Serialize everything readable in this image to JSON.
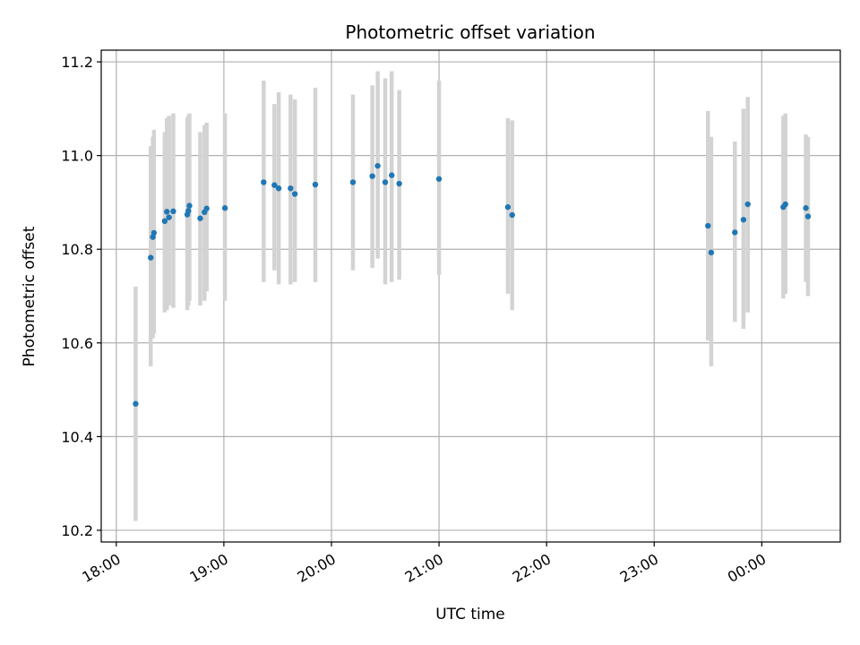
{
  "chart_data": {
    "type": "scatter",
    "title": "Photometric offset variation",
    "xlabel": "UTC time",
    "ylabel": "Photometric offset",
    "x_unit": "UTC hours (values past 24 are after midnight)",
    "xlim": [
      17.86,
      24.73
    ],
    "ylim": [
      10.175,
      11.225
    ],
    "x_ticks": [
      {
        "value": 18,
        "label": "18:00"
      },
      {
        "value": 19,
        "label": "19:00"
      },
      {
        "value": 20,
        "label": "20:00"
      },
      {
        "value": 21,
        "label": "21:00"
      },
      {
        "value": 22,
        "label": "22:00"
      },
      {
        "value": 23,
        "label": "23:00"
      },
      {
        "value": 24,
        "label": "00:00"
      }
    ],
    "y_ticks": [
      {
        "value": 10.2,
        "label": "10.2"
      },
      {
        "value": 10.4,
        "label": "10.4"
      },
      {
        "value": 10.6,
        "label": "10.6"
      },
      {
        "value": 10.8,
        "label": "10.8"
      },
      {
        "value": 11.0,
        "label": "11.0"
      },
      {
        "value": 11.2,
        "label": "11.2"
      }
    ],
    "grid": true,
    "colors": {
      "point": "#1f77b4",
      "errorbar": "#d3d3d3",
      "grid": "#b0b0b0"
    },
    "points": [
      {
        "x": 18.18,
        "y": 10.47,
        "lo": 10.22,
        "hi": 10.72
      },
      {
        "x": 18.32,
        "y": 10.782,
        "lo": 10.55,
        "hi": 11.02
      },
      {
        "x": 18.34,
        "y": 10.826,
        "lo": 10.61,
        "hi": 11.04
      },
      {
        "x": 18.35,
        "y": 10.835,
        "lo": 10.62,
        "hi": 11.055
      },
      {
        "x": 18.45,
        "y": 10.86,
        "lo": 10.665,
        "hi": 11.05
      },
      {
        "x": 18.47,
        "y": 10.88,
        "lo": 10.67,
        "hi": 11.08
      },
      {
        "x": 18.49,
        "y": 10.868,
        "lo": 10.68,
        "hi": 11.085
      },
      {
        "x": 18.53,
        "y": 10.881,
        "lo": 10.675,
        "hi": 11.09
      },
      {
        "x": 18.66,
        "y": 10.874,
        "lo": 10.67,
        "hi": 11.08
      },
      {
        "x": 18.67,
        "y": 10.882,
        "lo": 10.68,
        "hi": 11.085
      },
      {
        "x": 18.68,
        "y": 10.893,
        "lo": 10.69,
        "hi": 11.09
      },
      {
        "x": 18.78,
        "y": 10.866,
        "lo": 10.68,
        "hi": 11.05
      },
      {
        "x": 18.82,
        "y": 10.879,
        "lo": 10.69,
        "hi": 11.065
      },
      {
        "x": 18.84,
        "y": 10.887,
        "lo": 10.71,
        "hi": 11.07
      },
      {
        "x": 19.01,
        "y": 10.888,
        "lo": 10.69,
        "hi": 11.09
      },
      {
        "x": 19.37,
        "y": 10.943,
        "lo": 10.73,
        "hi": 11.16
      },
      {
        "x": 19.47,
        "y": 10.937,
        "lo": 10.755,
        "hi": 11.11
      },
      {
        "x": 19.51,
        "y": 10.93,
        "lo": 10.725,
        "hi": 11.135
      },
      {
        "x": 19.62,
        "y": 10.93,
        "lo": 10.725,
        "hi": 11.13
      },
      {
        "x": 19.66,
        "y": 10.918,
        "lo": 10.73,
        "hi": 11.12
      },
      {
        "x": 19.85,
        "y": 10.938,
        "lo": 10.73,
        "hi": 11.145
      },
      {
        "x": 20.2,
        "y": 10.943,
        "lo": 10.755,
        "hi": 11.13
      },
      {
        "x": 20.38,
        "y": 10.956,
        "lo": 10.76,
        "hi": 11.15
      },
      {
        "x": 20.43,
        "y": 10.978,
        "lo": 10.78,
        "hi": 11.18
      },
      {
        "x": 20.5,
        "y": 10.943,
        "lo": 10.725,
        "hi": 11.165
      },
      {
        "x": 20.56,
        "y": 10.958,
        "lo": 10.73,
        "hi": 11.18
      },
      {
        "x": 20.63,
        "y": 10.94,
        "lo": 10.735,
        "hi": 11.14
      },
      {
        "x": 21.0,
        "y": 10.95,
        "lo": 10.745,
        "hi": 11.16
      },
      {
        "x": 21.64,
        "y": 10.89,
        "lo": 10.705,
        "hi": 11.08
      },
      {
        "x": 21.68,
        "y": 10.873,
        "lo": 10.67,
        "hi": 11.075
      },
      {
        "x": 23.5,
        "y": 10.85,
        "lo": 10.605,
        "hi": 11.095
      },
      {
        "x": 23.53,
        "y": 10.793,
        "lo": 10.55,
        "hi": 11.04
      },
      {
        "x": 23.75,
        "y": 10.836,
        "lo": 10.645,
        "hi": 11.03
      },
      {
        "x": 23.83,
        "y": 10.863,
        "lo": 10.63,
        "hi": 11.1
      },
      {
        "x": 23.87,
        "y": 10.896,
        "lo": 10.665,
        "hi": 11.125
      },
      {
        "x": 24.2,
        "y": 10.89,
        "lo": 10.695,
        "hi": 11.085
      },
      {
        "x": 24.22,
        "y": 10.896,
        "lo": 10.705,
        "hi": 11.09
      },
      {
        "x": 24.41,
        "y": 10.888,
        "lo": 10.73,
        "hi": 11.045
      },
      {
        "x": 24.43,
        "y": 10.87,
        "lo": 10.7,
        "hi": 11.04
      }
    ]
  }
}
